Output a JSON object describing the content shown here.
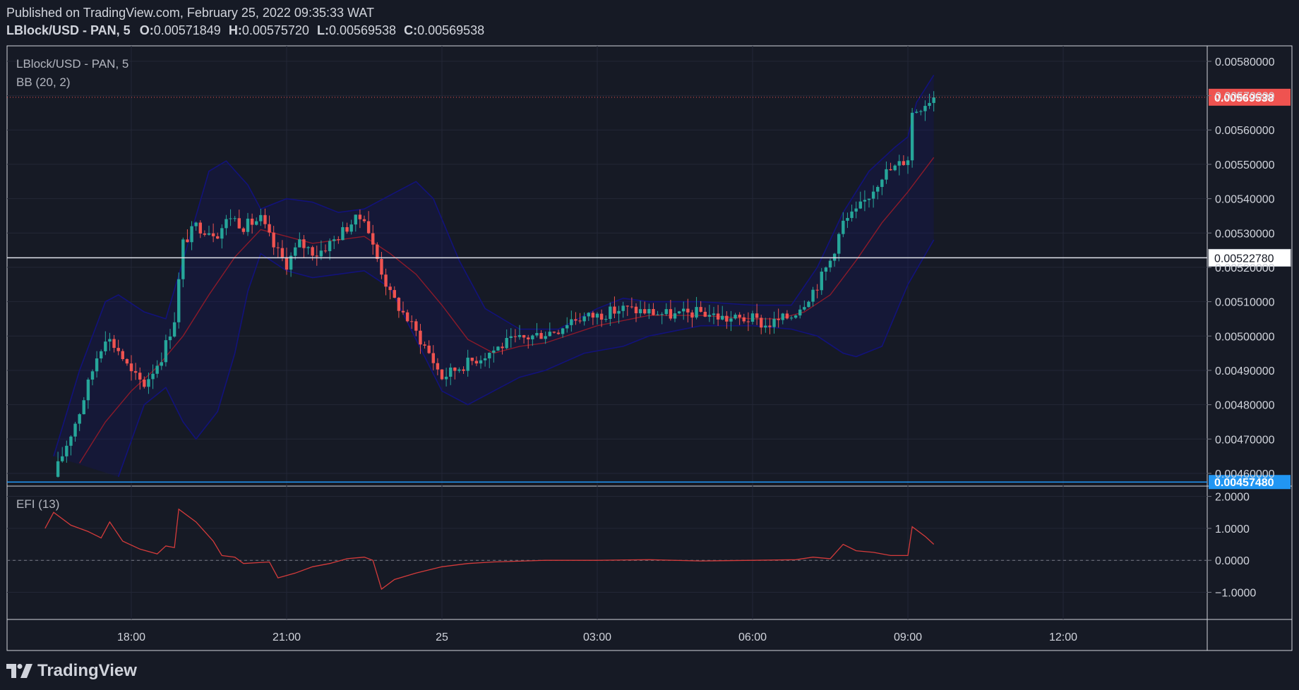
{
  "header": {
    "published": "Published on TradingView.com, February 25, 2022 09:35:33 WAT",
    "symbol": "LBlock/USD - PAN, 5",
    "o_label": "O:",
    "o_value": "0.00571849",
    "h_label": "H:",
    "h_value": "0.00575720",
    "l_label": "L:",
    "l_value": "0.00569538",
    "c_label": "C:",
    "c_value": "0.00569538"
  },
  "pane_labels": {
    "symbol": "LBlock/USD - PAN, 5",
    "bb": "BB (20, 2)",
    "efi": "EFI (13)"
  },
  "footer": {
    "logo_text": "TradingView"
  },
  "colors": {
    "background": "#161a25",
    "grid": "#232736",
    "up": "#26a69a",
    "down": "#ef5350",
    "bb_band": "#12127a",
    "bb_basis": "#8b1a2a",
    "efi_line": "#d43b3b",
    "price_tag": "#ef5350",
    "line_white": "#e0e3eb",
    "line_blue": "#2196f3"
  },
  "chart_data": [
    {
      "type": "candlestick",
      "title": "LBlock/USD - PAN, 5",
      "indicator": "BB (20, 2)",
      "x_tick_labels": [
        "18:00",
        "21:00",
        "25",
        "03:00",
        "06:00",
        "09:00",
        "12:00"
      ],
      "y_tick_labels": [
        "0.00580000",
        "0.00570000",
        "0.00560000",
        "0.00550000",
        "0.00540000",
        "0.00530000",
        "0.00520000",
        "0.00510000",
        "0.00500000",
        "0.00490000",
        "0.00480000",
        "0.00470000",
        "0.00460000"
      ],
      "ylim": [
        0.004565,
        0.005845
      ],
      "price_tags": {
        "last": "0.00569538",
        "white_line": "0.00522780",
        "blue_line": "0.00457480"
      },
      "horizontal_lines": [
        0.0052278,
        0.0045748
      ],
      "last_price": 0.00569538,
      "price_path": [
        [
          "16:30",
          0.00459
        ],
        [
          "17:00",
          0.00478
        ],
        [
          "17:20",
          0.00494
        ],
        [
          "17:30",
          0.005
        ],
        [
          "17:45",
          0.00496
        ],
        [
          "18:00",
          0.00489
        ],
        [
          "18:15",
          0.00486
        ],
        [
          "18:35",
          0.00494
        ],
        [
          "18:50",
          0.00505
        ],
        [
          "19:00",
          0.00527
        ],
        [
          "19:15",
          0.00532
        ],
        [
          "19:40",
          0.0053
        ],
        [
          "19:55",
          0.00535
        ],
        [
          "20:10",
          0.00532
        ],
        [
          "20:30",
          0.00534
        ],
        [
          "20:45",
          0.00526
        ],
        [
          "21:00",
          0.00521
        ],
        [
          "21:15",
          0.00527
        ],
        [
          "21:35",
          0.00524
        ],
        [
          "21:55",
          0.00528
        ],
        [
          "22:15",
          0.00533
        ],
        [
          "22:30",
          0.00535
        ],
        [
          "22:40",
          0.00526
        ],
        [
          "23:00",
          0.00512
        ],
        [
          "23:20",
          0.00505
        ],
        [
          "23:45",
          0.00495
        ],
        [
          "00:00",
          0.00488
        ],
        [
          "00:20",
          0.00491
        ],
        [
          "00:45",
          0.00494
        ],
        [
          "01:15",
          0.00498
        ],
        [
          "01:45",
          0.005
        ],
        [
          "02:15",
          0.00502
        ],
        [
          "02:30",
          0.00505
        ],
        [
          "03:00",
          0.00506
        ],
        [
          "03:30",
          0.00508
        ],
        [
          "04:00",
          0.00507
        ],
        [
          "04:30",
          0.00506
        ],
        [
          "05:00",
          0.00507
        ],
        [
          "05:30",
          0.00505
        ],
        [
          "06:00",
          0.00505
        ],
        [
          "06:15",
          0.00503
        ],
        [
          "06:45",
          0.00506
        ],
        [
          "07:00",
          0.0051
        ],
        [
          "07:15",
          0.00515
        ],
        [
          "07:30",
          0.00522
        ],
        [
          "07:45",
          0.00533
        ],
        [
          "08:00",
          0.00536
        ],
        [
          "08:15",
          0.00541
        ],
        [
          "08:30",
          0.00547
        ],
        [
          "08:45",
          0.00549
        ],
        [
          "09:00",
          0.00552
        ],
        [
          "09:05",
          0.00565
        ],
        [
          "09:15",
          0.00567
        ],
        [
          "09:25",
          0.00569
        ],
        [
          "09:30",
          0.0057
        ]
      ],
      "bb_upper": [
        [
          "16:30",
          0.00465
        ],
        [
          "17:00",
          0.0049
        ],
        [
          "17:30",
          0.0051
        ],
        [
          "17:45",
          0.00512
        ],
        [
          "18:15",
          0.00507
        ],
        [
          "18:40",
          0.00505
        ],
        [
          "19:00",
          0.00522
        ],
        [
          "19:30",
          0.00548
        ],
        [
          "19:50",
          0.00551
        ],
        [
          "20:15",
          0.00544
        ],
        [
          "20:30",
          0.00537
        ],
        [
          "21:00",
          0.0054
        ],
        [
          "21:30",
          0.00539
        ],
        [
          "22:00",
          0.00536
        ],
        [
          "22:30",
          0.00537
        ],
        [
          "23:00",
          0.00541
        ],
        [
          "23:30",
          0.00545
        ],
        [
          "23:50",
          0.0054
        ],
        [
          "00:20",
          0.00522
        ],
        [
          "00:50",
          0.00508
        ],
        [
          "01:30",
          0.00502
        ],
        [
          "02:15",
          0.00502
        ],
        [
          "03:00",
          0.00508
        ],
        [
          "03:30",
          0.00511
        ],
        [
          "04:00",
          0.0051
        ],
        [
          "05:00",
          0.0051
        ],
        [
          "06:00",
          0.00509
        ],
        [
          "06:45",
          0.00509
        ],
        [
          "07:15",
          0.0052
        ],
        [
          "07:45",
          0.00536
        ],
        [
          "08:15",
          0.00548
        ],
        [
          "08:45",
          0.00555
        ],
        [
          "09:00",
          0.00558
        ],
        [
          "09:10",
          0.00568
        ],
        [
          "09:30",
          0.00576
        ]
      ],
      "bb_basis": [
        [
          "17:00",
          0.00463
        ],
        [
          "17:30",
          0.00475
        ],
        [
          "18:00",
          0.00484
        ],
        [
          "18:30",
          0.00491
        ],
        [
          "19:00",
          0.005
        ],
        [
          "19:30",
          0.00512
        ],
        [
          "20:00",
          0.00523
        ],
        [
          "20:30",
          0.00531
        ],
        [
          "21:00",
          0.00529
        ],
        [
          "21:30",
          0.00527
        ],
        [
          "22:00",
          0.00528
        ],
        [
          "22:30",
          0.00529
        ],
        [
          "23:00",
          0.00524
        ],
        [
          "23:30",
          0.00518
        ],
        [
          "00:00",
          0.00509
        ],
        [
          "00:30",
          0.00499
        ],
        [
          "01:00",
          0.00495
        ],
        [
          "01:30",
          0.00497
        ],
        [
          "02:00",
          0.00498
        ],
        [
          "03:00",
          0.00503
        ],
        [
          "04:00",
          0.00506
        ],
        [
          "05:00",
          0.00506
        ],
        [
          "06:00",
          0.00505
        ],
        [
          "06:30",
          0.00505
        ],
        [
          "07:00",
          0.00507
        ],
        [
          "07:30",
          0.00512
        ],
        [
          "08:00",
          0.00522
        ],
        [
          "08:30",
          0.00533
        ],
        [
          "09:00",
          0.00542
        ],
        [
          "09:30",
          0.00552
        ]
      ],
      "bb_lower": [
        [
          "17:45",
          0.00459
        ],
        [
          "18:15",
          0.0048
        ],
        [
          "18:40",
          0.00485
        ],
        [
          "19:00",
          0.00475
        ],
        [
          "19:15",
          0.0047
        ],
        [
          "19:40",
          0.00478
        ],
        [
          "20:00",
          0.00495
        ],
        [
          "20:15",
          0.00513
        ],
        [
          "20:30",
          0.00524
        ],
        [
          "21:00",
          0.00519
        ],
        [
          "21:30",
          0.00517
        ],
        [
          "22:00",
          0.00518
        ],
        [
          "22:30",
          0.00519
        ],
        [
          "23:00",
          0.00514
        ],
        [
          "23:30",
          0.00499
        ],
        [
          "00:00",
          0.00484
        ],
        [
          "00:30",
          0.0048
        ],
        [
          "01:00",
          0.00484
        ],
        [
          "01:30",
          0.00488
        ],
        [
          "02:00",
          0.0049
        ],
        [
          "02:45",
          0.00495
        ],
        [
          "03:30",
          0.00497
        ],
        [
          "04:00",
          0.005
        ],
        [
          "05:00",
          0.00503
        ],
        [
          "06:00",
          0.00503
        ],
        [
          "06:45",
          0.00502
        ],
        [
          "07:15",
          0.005
        ],
        [
          "07:45",
          0.00495
        ],
        [
          "08:00",
          0.00494
        ],
        [
          "08:30",
          0.00497
        ],
        [
          "09:00",
          0.00515
        ],
        [
          "09:30",
          0.00528
        ]
      ]
    },
    {
      "type": "line",
      "title": "EFI (13)",
      "y_tick_labels": [
        "2.0000",
        "1.0000",
        "0.0000",
        "−1.0000"
      ],
      "ylim": [
        -1.85,
        2.3
      ],
      "zero_line": 0,
      "efi": [
        [
          "16:20",
          1.0
        ],
        [
          "16:30",
          1.5
        ],
        [
          "16:50",
          1.1
        ],
        [
          "17:10",
          0.9
        ],
        [
          "17:25",
          0.7
        ],
        [
          "17:35",
          1.2
        ],
        [
          "17:50",
          0.6
        ],
        [
          "18:10",
          0.35
        ],
        [
          "18:30",
          0.2
        ],
        [
          "18:40",
          0.45
        ],
        [
          "18:50",
          0.4
        ],
        [
          "18:55",
          1.6
        ],
        [
          "19:15",
          1.2
        ],
        [
          "19:35",
          0.6
        ],
        [
          "19:45",
          0.15
        ],
        [
          "20:00",
          0.1
        ],
        [
          "20:10",
          -0.1
        ],
        [
          "20:40",
          -0.05
        ],
        [
          "20:50",
          -0.55
        ],
        [
          "21:10",
          -0.4
        ],
        [
          "21:30",
          -0.2
        ],
        [
          "21:50",
          -0.1
        ],
        [
          "22:10",
          0.05
        ],
        [
          "22:30",
          0.1
        ],
        [
          "22:40",
          0.0
        ],
        [
          "22:50",
          -0.9
        ],
        [
          "23:05",
          -0.6
        ],
        [
          "23:30",
          -0.4
        ],
        [
          "00:00",
          -0.2
        ],
        [
          "00:30",
          -0.1
        ],
        [
          "01:00",
          -0.05
        ],
        [
          "02:00",
          0.0
        ],
        [
          "03:00",
          0.0
        ],
        [
          "04:00",
          0.02
        ],
        [
          "05:00",
          -0.02
        ],
        [
          "06:00",
          0.0
        ],
        [
          "06:50",
          0.02
        ],
        [
          "07:10",
          0.1
        ],
        [
          "07:30",
          0.05
        ],
        [
          "07:45",
          0.5
        ],
        [
          "08:00",
          0.3
        ],
        [
          "08:20",
          0.25
        ],
        [
          "08:40",
          0.15
        ],
        [
          "09:00",
          0.15
        ],
        [
          "09:05",
          1.05
        ],
        [
          "09:20",
          0.75
        ],
        [
          "09:30",
          0.5
        ]
      ]
    }
  ]
}
